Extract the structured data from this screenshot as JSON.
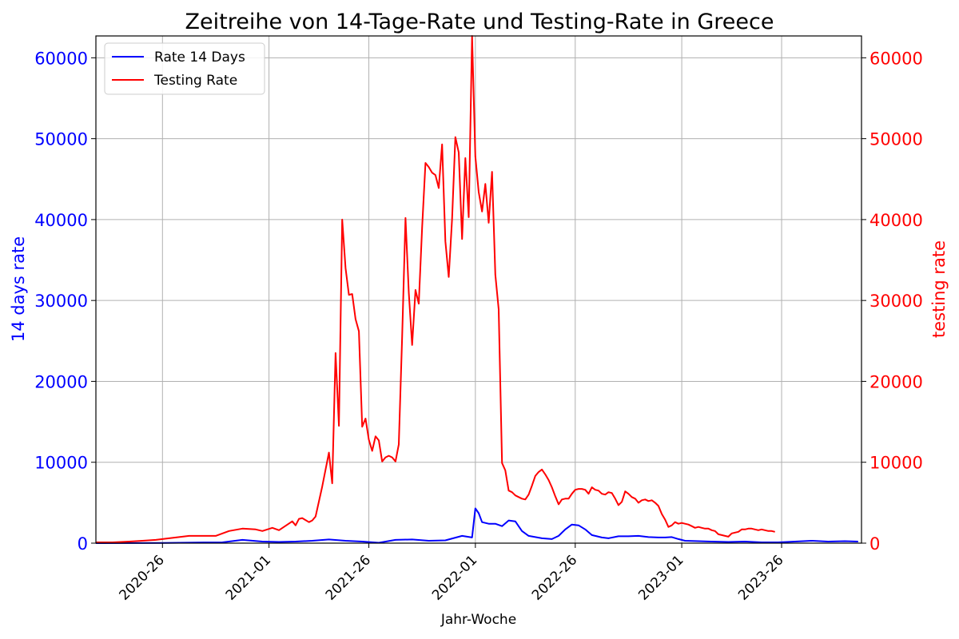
{
  "chart_data": {
    "type": "line",
    "title": "Zeitreihe von 14-Tage-Rate und Testing-Rate in Greece",
    "xlabel": "Jahr-Woche",
    "ylabel_left": "14 days rate",
    "ylabel_right": "testing rate",
    "ylim_left": [
      0,
      62700
    ],
    "ylim_right": [
      0,
      62700
    ],
    "left_ticks": [
      "0",
      "10000",
      "20000",
      "30000",
      "40000",
      "50000",
      "60000"
    ],
    "right_ticks": [
      "0",
      "10000",
      "20000",
      "30000",
      "40000",
      "50000",
      "60000"
    ],
    "x_range": [
      0,
      230
    ],
    "x_ticks": [
      {
        "x": 20,
        "label": "2020-26"
      },
      {
        "x": 52,
        "label": "2021-01"
      },
      {
        "x": 82,
        "label": "2021-26"
      },
      {
        "x": 114,
        "label": "2022-01"
      },
      {
        "x": 144,
        "label": "2022-26"
      },
      {
        "x": 176,
        "label": "2023-01"
      },
      {
        "x": 206,
        "label": "2023-26"
      }
    ],
    "grid": true,
    "legend_position": "top-left",
    "series": [
      {
        "name": "Rate 14 Days",
        "axis": "left",
        "color": "#0000ff",
        "points": [
          [
            0,
            0
          ],
          [
            10,
            10
          ],
          [
            20,
            30
          ],
          [
            30,
            80
          ],
          [
            38,
            100
          ],
          [
            44,
            400
          ],
          [
            50,
            200
          ],
          [
            55,
            150
          ],
          [
            60,
            200
          ],
          [
            65,
            300
          ],
          [
            70,
            450
          ],
          [
            75,
            300
          ],
          [
            80,
            200
          ],
          [
            85,
            50
          ],
          [
            90,
            400
          ],
          [
            95,
            450
          ],
          [
            100,
            300
          ],
          [
            105,
            350
          ],
          [
            110,
            900
          ],
          [
            113,
            700
          ],
          [
            114,
            4300
          ],
          [
            115,
            3700
          ],
          [
            116,
            2600
          ],
          [
            118,
            2400
          ],
          [
            120,
            2400
          ],
          [
            122,
            2100
          ],
          [
            124,
            2800
          ],
          [
            126,
            2700
          ],
          [
            128,
            1500
          ],
          [
            130,
            900
          ],
          [
            134,
            600
          ],
          [
            137,
            500
          ],
          [
            139,
            900
          ],
          [
            141,
            1700
          ],
          [
            143,
            2300
          ],
          [
            145,
            2200
          ],
          [
            147,
            1700
          ],
          [
            149,
            1000
          ],
          [
            152,
            700
          ],
          [
            154,
            600
          ],
          [
            157,
            850
          ],
          [
            160,
            850
          ],
          [
            163,
            900
          ],
          [
            166,
            750
          ],
          [
            169,
            700
          ],
          [
            171,
            700
          ],
          [
            173,
            750
          ],
          [
            175,
            500
          ],
          [
            177,
            300
          ],
          [
            181,
            250
          ],
          [
            185,
            200
          ],
          [
            190,
            150
          ],
          [
            195,
            200
          ],
          [
            200,
            100
          ],
          [
            205,
            100
          ],
          [
            210,
            200
          ],
          [
            215,
            300
          ],
          [
            220,
            200
          ],
          [
            225,
            250
          ],
          [
            229,
            200
          ]
        ]
      },
      {
        "name": "Testing Rate",
        "axis": "right",
        "color": "#ff0000",
        "points": [
          [
            0,
            100
          ],
          [
            5,
            100
          ],
          [
            10,
            200
          ],
          [
            14,
            300
          ],
          [
            18,
            400
          ],
          [
            22,
            600
          ],
          [
            24,
            700
          ],
          [
            28,
            900
          ],
          [
            32,
            900
          ],
          [
            36,
            900
          ],
          [
            40,
            1500
          ],
          [
            44,
            1800
          ],
          [
            48,
            1700
          ],
          [
            50,
            1500
          ],
          [
            53,
            1900
          ],
          [
            55,
            1600
          ],
          [
            59,
            2700
          ],
          [
            60,
            2200
          ],
          [
            61,
            3000
          ],
          [
            62,
            3100
          ],
          [
            64,
            2600
          ],
          [
            65,
            2800
          ],
          [
            66,
            3300
          ],
          [
            68,
            7000
          ],
          [
            70,
            11200
          ],
          [
            71,
            7400
          ],
          [
            72,
            23500
          ],
          [
            73,
            14500
          ],
          [
            74,
            40000
          ],
          [
            75,
            34000
          ],
          [
            76,
            30700
          ],
          [
            77,
            30800
          ],
          [
            78,
            27700
          ],
          [
            79,
            26200
          ],
          [
            80,
            14400
          ],
          [
            81,
            15400
          ],
          [
            82,
            12800
          ],
          [
            83,
            11400
          ],
          [
            84,
            13200
          ],
          [
            85,
            12700
          ],
          [
            86,
            10100
          ],
          [
            87,
            10600
          ],
          [
            88,
            10800
          ],
          [
            89,
            10600
          ],
          [
            90,
            10100
          ],
          [
            91,
            12200
          ],
          [
            92,
            25500
          ],
          [
            93,
            40200
          ],
          [
            94,
            31000
          ],
          [
            95,
            24500
          ],
          [
            96,
            31300
          ],
          [
            97,
            29600
          ],
          [
            98,
            39000
          ],
          [
            99,
            47000
          ],
          [
            100,
            46500
          ],
          [
            101,
            45800
          ],
          [
            102,
            45500
          ],
          [
            103,
            43900
          ],
          [
            104,
            49300
          ],
          [
            105,
            37300
          ],
          [
            106,
            32900
          ],
          [
            107,
            40100
          ],
          [
            108,
            50200
          ],
          [
            109,
            48300
          ],
          [
            110,
            37600
          ],
          [
            111,
            47600
          ],
          [
            112,
            40300
          ],
          [
            113,
            62700
          ],
          [
            114,
            47800
          ],
          [
            115,
            43400
          ],
          [
            116,
            41000
          ],
          [
            117,
            44400
          ],
          [
            118,
            39600
          ],
          [
            119,
            45900
          ],
          [
            120,
            33200
          ],
          [
            121,
            28900
          ],
          [
            122,
            9900
          ],
          [
            123,
            9000
          ],
          [
            124,
            6500
          ],
          [
            125,
            6300
          ],
          [
            126,
            5900
          ],
          [
            127,
            5700
          ],
          [
            128,
            5500
          ],
          [
            129,
            5400
          ],
          [
            130,
            6000
          ],
          [
            131,
            7100
          ],
          [
            132,
            8300
          ],
          [
            133,
            8800
          ],
          [
            134,
            9100
          ],
          [
            135,
            8500
          ],
          [
            136,
            7800
          ],
          [
            137,
            6900
          ],
          [
            138,
            5800
          ],
          [
            139,
            4800
          ],
          [
            140,
            5400
          ],
          [
            141,
            5500
          ],
          [
            142,
            5500
          ],
          [
            143,
            6100
          ],
          [
            144,
            6600
          ],
          [
            145,
            6700
          ],
          [
            146,
            6700
          ],
          [
            147,
            6600
          ],
          [
            148,
            6100
          ],
          [
            149,
            6900
          ],
          [
            150,
            6600
          ],
          [
            151,
            6500
          ],
          [
            152,
            6100
          ],
          [
            153,
            6000
          ],
          [
            154,
            6300
          ],
          [
            155,
            6200
          ],
          [
            156,
            5500
          ],
          [
            157,
            4700
          ],
          [
            158,
            5100
          ],
          [
            159,
            6400
          ],
          [
            160,
            6100
          ],
          [
            161,
            5700
          ],
          [
            162,
            5500
          ],
          [
            163,
            5000
          ],
          [
            164,
            5300
          ],
          [
            165,
            5400
          ],
          [
            166,
            5200
          ],
          [
            167,
            5300
          ],
          [
            168,
            5000
          ],
          [
            169,
            4600
          ],
          [
            170,
            3600
          ],
          [
            171,
            2900
          ],
          [
            172,
            2000
          ],
          [
            173,
            2200
          ],
          [
            174,
            2600
          ],
          [
            175,
            2400
          ],
          [
            176,
            2500
          ],
          [
            177,
            2400
          ],
          [
            178,
            2300
          ],
          [
            179,
            2100
          ],
          [
            180,
            1900
          ],
          [
            181,
            2000
          ],
          [
            182,
            1900
          ],
          [
            183,
            1800
          ],
          [
            184,
            1800
          ],
          [
            185,
            1600
          ],
          [
            186,
            1500
          ],
          [
            187,
            1100
          ],
          [
            188,
            1000
          ],
          [
            189,
            900
          ],
          [
            190,
            800
          ],
          [
            191,
            1200
          ],
          [
            192,
            1300
          ],
          [
            193,
            1400
          ],
          [
            194,
            1700
          ],
          [
            195,
            1700
          ],
          [
            196,
            1800
          ],
          [
            197,
            1800
          ],
          [
            198,
            1700
          ],
          [
            199,
            1600
          ],
          [
            200,
            1700
          ],
          [
            201,
            1600
          ],
          [
            202,
            1500
          ],
          [
            203,
            1500
          ],
          [
            204,
            1400
          ]
        ]
      }
    ]
  }
}
